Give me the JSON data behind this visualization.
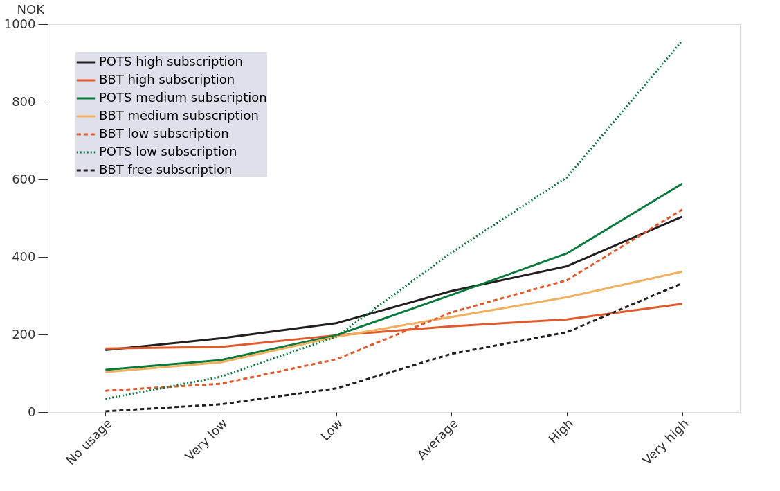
{
  "chart_data": {
    "type": "line",
    "ylabel": "NOK",
    "categories": [
      "No usage",
      "Very low",
      "Low",
      "Average",
      "High",
      "Very high"
    ],
    "ylim": [
      0,
      1000
    ],
    "yticks": [
      0,
      200,
      400,
      600,
      800,
      1000
    ],
    "grid": false,
    "legend": "top left",
    "marker": "none",
    "series": [
      {
        "name": "POTS high subscription",
        "color": "#231f20",
        "line_style": "solid",
        "values": [
          160,
          190,
          229,
          312,
          376,
          504
        ]
      },
      {
        "name": "BBT high subscription",
        "color": "#e05a2b",
        "line_style": "solid",
        "values": [
          164,
          168,
          198,
          221,
          239,
          279
        ]
      },
      {
        "name": "POTS medium subscription",
        "color": "#0a7a3c",
        "line_style": "solid",
        "values": [
          109,
          134,
          198,
          302,
          409,
          589
        ]
      },
      {
        "name": "BBT medium subscription",
        "color": "#f0b060",
        "line_style": "solid",
        "values": [
          103,
          128,
          194,
          245,
          296,
          362
        ]
      },
      {
        "name": "BBT low subscription",
        "color": "#e05a2b",
        "line_style": "dashed",
        "values": [
          55,
          73,
          136,
          257,
          340,
          522
        ]
      },
      {
        "name": "POTS low subscription",
        "color": "#0a7a3c",
        "line_style": "dotted",
        "values": [
          34,
          91,
          194,
          411,
          605,
          958
        ]
      },
      {
        "name": "BBT free subscription",
        "color": "#231f20",
        "line_style": "dashed",
        "values": [
          2,
          20,
          61,
          150,
          206,
          332
        ]
      }
    ]
  }
}
